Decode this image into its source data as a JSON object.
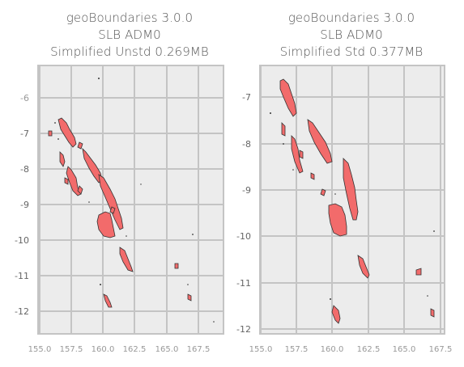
{
  "panels": [
    {
      "title_lines": [
        "geoBoundaries 3.0.0",
        "SLB ADM0",
        "Simplified Unstd 0.269MB"
      ],
      "y_ticks": [
        "-6",
        "-7",
        "-8",
        "-9",
        "-10",
        "-11",
        "-12"
      ],
      "x_ticks": [
        "155.0",
        "157.5",
        "160.0",
        "162.5",
        "165.0",
        "167.5"
      ]
    },
    {
      "title_lines": [
        "geoBoundaries 3.0.0",
        "SLB ADM0",
        "Simplified Std 0.377MB"
      ],
      "y_ticks": [
        "-7",
        "-8",
        "-9",
        "-10",
        "-11",
        "-12"
      ],
      "x_ticks": [
        "155.0",
        "157.5",
        "160.0",
        "162.5",
        "165.0",
        "167.5"
      ]
    }
  ],
  "style": {
    "fill": "#f26b6b",
    "stroke": "#333333",
    "grid": "#c4c4c4",
    "background": "#ececec"
  }
}
